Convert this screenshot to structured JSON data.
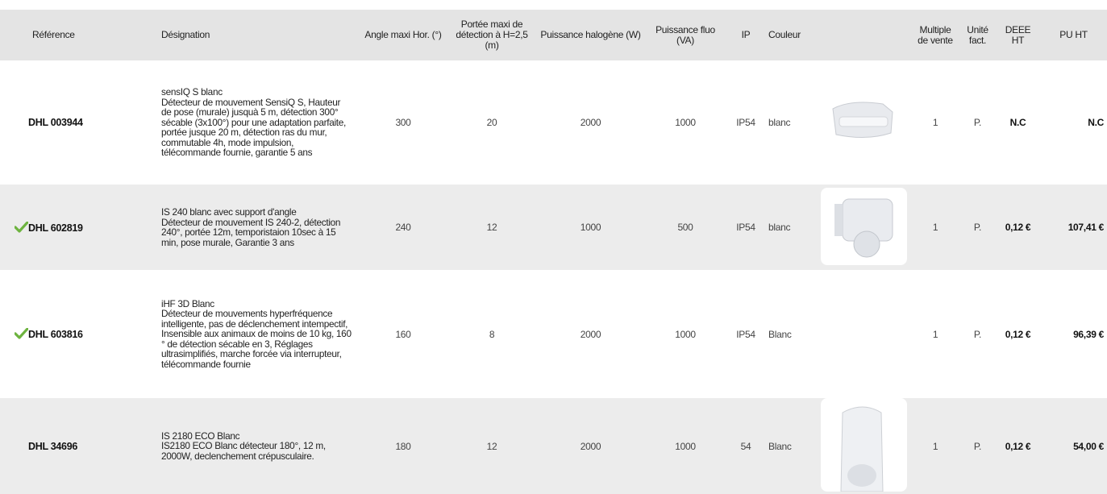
{
  "header": [
    "Référence",
    "Désignation",
    "Angle maxi Hor. (°)",
    "Portée maxi de détection à H=2,5 (m)",
    "Puissance halogène (W)",
    "Puissance fluo (VA)",
    "IP",
    "Couleur",
    "Multiple de vente",
    "Unité fact.",
    "DEEE HT",
    "PU HT"
  ],
  "rows": [
    {
      "reference": "DHL 003944",
      "name": "sensIQ S blanc",
      "description": "Détecteur de mouvement SensiQ S, Hauteur de pose (murale) jusquà 5 m, détection 300° sécable (3x100°) pour une adaptation parfaite, portée jusque 20 m, détection ras du mur, commutable 4h, mode impulsion, télécommande fournie, garantie 5 ans",
      "angle": 300,
      "range": 20,
      "halogen": 2000,
      "fluo": 1000,
      "ip": "IP54",
      "color": "blanc",
      "multiple": 1,
      "unit": "P.",
      "deee": "N.C",
      "price": "N.C"
    },
    {
      "reference": "DHL 602819",
      "name": "IS 240 blanc avec support d'angle",
      "description": "Détecteur de mouvement IS 240-2, détection 240°, portée 12m, temporistaion 10sec à 15 min, pose murale, Garantie 3 ans",
      "angle": 240,
      "range": 12,
      "halogen": 1000,
      "fluo": 500,
      "ip": "IP54",
      "color": "blanc",
      "multiple": 1,
      "unit": "P.",
      "deee": "0,12 €",
      "price": "107,41 €"
    },
    {
      "reference": "DHL 603816",
      "name": "iHF 3D Blanc",
      "description": "Détecteur de mouvements hyperfréquence intelligente, pas de déclenchement intempectif, Insensible aux animaux de moins de 10 kg, 160 ° de détection sécable en 3, Réglages ultrasimplifiés, marche forcée via interrupteur, télécommande fournie",
      "angle": 160,
      "range": 8,
      "halogen": 2000,
      "fluo": 1000,
      "ip": "IP54",
      "color": "Blanc",
      "multiple": 1,
      "unit": "P.",
      "deee": "0,12 €",
      "price": "96,39 €"
    },
    {
      "reference": "DHL 34696",
      "name": "IS 2180 ECO Blanc",
      "description": "IS2180 ECO Blanc détecteur 180°, 12 m, 2000W, declenchement crépusculaire.",
      "angle": 180,
      "range": 12,
      "halogen": 2000,
      "fluo": 1000,
      "ip": "54",
      "color": "Blanc",
      "multiple": 1,
      "unit": "P.",
      "deee": "0,12 €",
      "price": "54,00 €"
    }
  ]
}
